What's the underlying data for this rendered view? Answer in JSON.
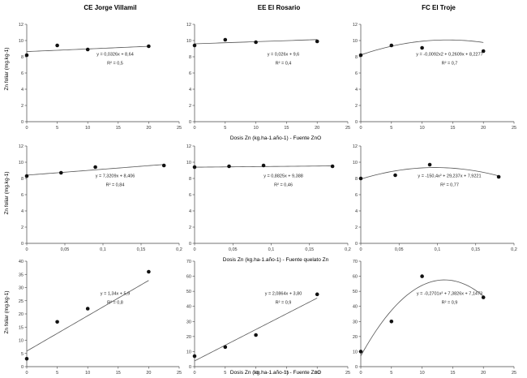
{
  "columns": [
    "CE Jorge Villamil",
    "EE El Rosario",
    "FC El Troje"
  ],
  "ylabel": "Zn foliar (mg.kg-1)",
  "row_xlabels": [
    "Dosis Zn (kg.ha-1.año-1) - Fuente ZnO",
    "Dosis Zn (kg.ha-1.año-1) - Fuente quelato  Zn",
    "Dosis Zn (kg.ha-1.año-1) - Fuente ZnO"
  ],
  "chart_data": [
    {
      "type": "scatter",
      "row": 0,
      "col": 0,
      "title": "CE Jorge Villamil",
      "xlabel": "",
      "ylabel": "Zn foliar (mg.kg-1)",
      "xlim": [
        0,
        25
      ],
      "ylim": [
        0,
        12
      ],
      "xticks": [
        "0",
        "5",
        "10",
        "15",
        "20",
        "25"
      ],
      "yticks": [
        "0",
        "2",
        "4",
        "6",
        "8",
        "10",
        "12"
      ],
      "x": [
        0,
        5,
        10,
        20
      ],
      "y": [
        8.2,
        9.4,
        8.9,
        9.3
      ],
      "fit": {
        "kind": "linear",
        "a": 0.0326,
        "b": 8.64
      },
      "equation": "y = 0,0326x + 8,64",
      "r2": "R² = 0,5"
    },
    {
      "type": "scatter",
      "row": 0,
      "col": 1,
      "title": "EE El Rosario",
      "xlabel": "Dosis Zn (kg.ha-1.año-1) - Fuente ZnO",
      "ylabel": "",
      "xlim": [
        0,
        25
      ],
      "ylim": [
        0,
        12
      ],
      "xticks": [
        "0",
        "5",
        "10",
        "15",
        "20",
        "25"
      ],
      "yticks": [
        "0",
        "2",
        "4",
        "6",
        "8",
        "10",
        "12"
      ],
      "x": [
        0,
        5,
        10,
        20
      ],
      "y": [
        9.4,
        10.1,
        9.8,
        9.9
      ],
      "fit": {
        "kind": "linear",
        "a": 0.026,
        "b": 9.6
      },
      "equation": "y = 0,026x + 9,6",
      "r2": "R² = 0,4"
    },
    {
      "type": "scatter",
      "row": 0,
      "col": 2,
      "title": "FC El Troje",
      "xlabel": "",
      "ylabel": "",
      "xlim": [
        0,
        25
      ],
      "ylim": [
        0,
        12
      ],
      "xticks": [
        "0",
        "5",
        "10",
        "15",
        "20",
        "25"
      ],
      "yticks": [
        "0",
        "2",
        "4",
        "6",
        "8",
        "10",
        "12"
      ],
      "x": [
        0,
        5,
        10,
        20
      ],
      "y": [
        8.2,
        9.4,
        9.1,
        8.7
      ],
      "fit": {
        "kind": "quadratic",
        "a": -0.0092,
        "b": 0.2609,
        "c": 8.2277
      },
      "equation": "y = -0,0092x2 + 0,2609x + 8,2277",
      "r2": "R² = 0,7"
    },
    {
      "type": "scatter",
      "row": 1,
      "col": 0,
      "title": "",
      "xlabel": "",
      "ylabel": "Zn foliar (mg.kg-1)",
      "xlim": [
        0,
        0.2
      ],
      "ylim": [
        0,
        12
      ],
      "xticks": [
        "0",
        "0,05",
        "0,1",
        "0,15",
        "0,2"
      ],
      "yticks": [
        "0",
        "2",
        "4",
        "6",
        "8",
        "10",
        "12"
      ],
      "x": [
        0,
        0.045,
        0.09,
        0.18
      ],
      "y": [
        8.3,
        8.7,
        9.4,
        9.6
      ],
      "fit": {
        "kind": "linear",
        "a": 7.3209,
        "b": 8.406
      },
      "equation": "y = 7,3209x + 8,406",
      "r2": "R² = 0,84"
    },
    {
      "type": "scatter",
      "row": 1,
      "col": 1,
      "title": "",
      "xlabel": "Dosis Zn (kg.ha-1.año-1) - Fuente quelato  Zn",
      "ylabel": "",
      "xlim": [
        0,
        0.2
      ],
      "ylim": [
        0,
        12
      ],
      "xticks": [
        "0",
        "0,05",
        "0,1",
        "0,15",
        "0,2"
      ],
      "yticks": [
        "0",
        "2",
        "4",
        "6",
        "8",
        "10",
        "12"
      ],
      "x": [
        0,
        0.045,
        0.09,
        0.18
      ],
      "y": [
        9.4,
        9.5,
        9.6,
        9.5
      ],
      "fit": {
        "kind": "linear",
        "a": 0.8825,
        "b": 9.388
      },
      "equation": "y = 0,8825x + 9,388",
      "r2": "R² = 0,46"
    },
    {
      "type": "scatter",
      "row": 1,
      "col": 2,
      "title": "",
      "xlabel": "",
      "ylabel": "",
      "xlim": [
        0,
        0.2
      ],
      "ylim": [
        0,
        12
      ],
      "xticks": [
        "0",
        "0,05",
        "0,1",
        "0,15",
        "0,2"
      ],
      "yticks": [
        "0",
        "2",
        "4",
        "6",
        "8",
        "10",
        "12"
      ],
      "x": [
        0,
        0.045,
        0.09,
        0.18
      ],
      "y": [
        8.0,
        8.4,
        9.7,
        8.2
      ],
      "fit": {
        "kind": "quadratic",
        "a": -150.4,
        "b": 29.237,
        "c": 7.9221
      },
      "equation": "y = -150,4x² + 29,237x + 7,9221",
      "r2": "R² = 0,77"
    },
    {
      "type": "scatter",
      "row": 2,
      "col": 0,
      "title": "",
      "xlabel": "",
      "ylabel": "Zn foliar (mg.kg-1)",
      "xlim": [
        0,
        25
      ],
      "ylim": [
        0,
        40
      ],
      "xticks": [
        "0",
        "5",
        "10",
        "15",
        "20",
        "25"
      ],
      "yticks": [
        "0",
        "5",
        "10",
        "15",
        "20",
        "25",
        "30",
        "35",
        "40"
      ],
      "x": [
        0,
        5,
        10,
        20
      ],
      "y": [
        3,
        17,
        22,
        36
      ],
      "fit": {
        "kind": "linear",
        "a": 1.34,
        "b": 5.9
      },
      "equation": "y = 1,34x + 5,9",
      "r2": "R² = 0,8"
    },
    {
      "type": "scatter",
      "row": 2,
      "col": 1,
      "title": "",
      "xlabel": "Dosis Zn (kg.ha-1.año-1) - Fuente ZnO",
      "ylabel": "",
      "xlim": [
        0,
        25
      ],
      "ylim": [
        0,
        70
      ],
      "xticks": [
        "0",
        "5",
        "10",
        "15",
        "20",
        "25"
      ],
      "yticks": [
        "0",
        "10",
        "20",
        "30",
        "40",
        "50",
        "60",
        "70"
      ],
      "x": [
        0,
        5,
        10,
        20
      ],
      "y": [
        7,
        13,
        21,
        48
      ],
      "fit": {
        "kind": "linear",
        "a": 2.0864,
        "b": 3.8
      },
      "equation": "y = 2,0864x + 3,80",
      "r2": "R² = 0,9"
    },
    {
      "type": "scatter",
      "row": 2,
      "col": 2,
      "title": "",
      "xlabel": "",
      "ylabel": "",
      "xlim": [
        0,
        25
      ],
      "ylim": [
        0,
        70
      ],
      "xticks": [
        "0",
        "5",
        "10",
        "15",
        "20",
        "25"
      ],
      "yticks": [
        "0",
        "10",
        "20",
        "30",
        "40",
        "50",
        "60",
        "70"
      ],
      "x": [
        0,
        5,
        10,
        20
      ],
      "y": [
        10,
        30,
        60,
        46
      ],
      "fit": {
        "kind": "quadratic",
        "a": -0.2701,
        "b": 7.3826,
        "c": 7.1473
      },
      "equation": "y = -0,2701x² + 7,3826x + 7,1473",
      "r2": "R² = 0,9"
    }
  ]
}
